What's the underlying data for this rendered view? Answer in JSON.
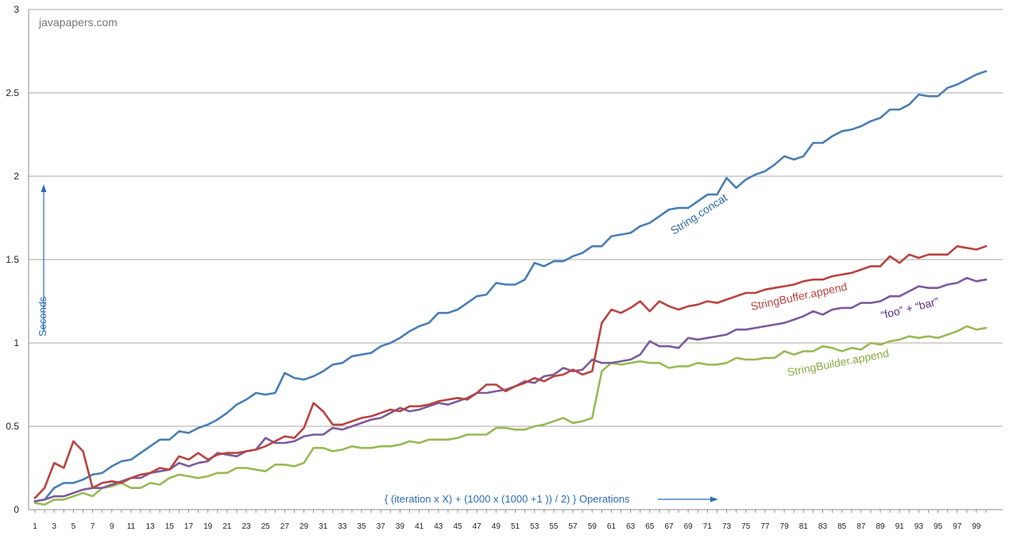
{
  "chart_data": {
    "type": "line",
    "watermark": "javapapers.com",
    "xlabel": "{ (iteration x X) + (1000 x (1000 +1 )) / 2) } Operations",
    "ylabel": "Seconds",
    "xlim": [
      1,
      100
    ],
    "ylim": [
      0,
      3
    ],
    "y_ticks": [
      "0",
      "0.5",
      "1",
      "1.5",
      "2",
      "2.5",
      "3"
    ],
    "y_tick_values": [
      0,
      0.5,
      1,
      1.5,
      2,
      2.5,
      3
    ],
    "x_tick_labels": [
      "1",
      "3",
      "5",
      "7",
      "9",
      "11",
      "13",
      "15",
      "17",
      "19",
      "21",
      "23",
      "25",
      "27",
      "29",
      "31",
      "33",
      "35",
      "37",
      "39",
      "41",
      "43",
      "45",
      "47",
      "49",
      "51",
      "53",
      "55",
      "57",
      "59",
      "61",
      "63",
      "65",
      "67",
      "69",
      "71",
      "73",
      "75",
      "77",
      "79",
      "81",
      "83",
      "85",
      "87",
      "89",
      "91",
      "93",
      "95",
      "97",
      "99"
    ],
    "grid": "horizontal",
    "colors": {
      "string_concat": "#4a7eb4",
      "string_buffer": "#b8443f",
      "foo_bar": "#7b5b9c",
      "string_builder": "#98b955",
      "annotation": "#2a6db5"
    },
    "series": [
      {
        "name": "String.concat",
        "color": "#4a7eb4",
        "values": [
          0.05,
          0.06,
          0.13,
          0.16,
          0.16,
          0.18,
          0.21,
          0.22,
          0.26,
          0.29,
          0.3,
          0.34,
          0.38,
          0.42,
          0.42,
          0.47,
          0.46,
          0.49,
          0.51,
          0.54,
          0.58,
          0.63,
          0.66,
          0.7,
          0.69,
          0.7,
          0.82,
          0.79,
          0.78,
          0.8,
          0.83,
          0.87,
          0.88,
          0.92,
          0.93,
          0.94,
          0.98,
          1.0,
          1.03,
          1.07,
          1.1,
          1.12,
          1.18,
          1.18,
          1.2,
          1.24,
          1.28,
          1.29,
          1.36,
          1.35,
          1.35,
          1.38,
          1.48,
          1.46,
          1.49,
          1.49,
          1.52,
          1.54,
          1.58,
          1.58,
          1.64,
          1.65,
          1.66,
          1.7,
          1.72,
          1.76,
          1.8,
          1.81,
          1.81,
          1.85,
          1.89,
          1.89,
          1.99,
          1.93,
          1.98,
          2.01,
          2.03,
          2.07,
          2.12,
          2.1,
          2.12,
          2.2,
          2.2,
          2.24,
          2.27,
          2.28,
          2.3,
          2.33,
          2.35,
          2.4,
          2.4,
          2.43,
          2.49,
          2.48,
          2.48,
          2.53,
          2.55,
          2.58,
          2.61,
          2.63
        ]
      },
      {
        "name": "StringBuffer.append",
        "color": "#b8443f",
        "values": [
          0.07,
          0.13,
          0.28,
          0.25,
          0.41,
          0.35,
          0.13,
          0.16,
          0.17,
          0.16,
          0.19,
          0.21,
          0.22,
          0.25,
          0.24,
          0.32,
          0.3,
          0.34,
          0.3,
          0.33,
          0.34,
          0.34,
          0.35,
          0.36,
          0.38,
          0.41,
          0.44,
          0.43,
          0.49,
          0.64,
          0.59,
          0.51,
          0.51,
          0.53,
          0.55,
          0.56,
          0.58,
          0.6,
          0.59,
          0.62,
          0.62,
          0.63,
          0.65,
          0.66,
          0.67,
          0.66,
          0.7,
          0.75,
          0.75,
          0.71,
          0.74,
          0.76,
          0.79,
          0.77,
          0.8,
          0.81,
          0.84,
          0.81,
          0.83,
          1.12,
          1.2,
          1.18,
          1.21,
          1.25,
          1.19,
          1.25,
          1.22,
          1.2,
          1.22,
          1.23,
          1.25,
          1.24,
          1.26,
          1.28,
          1.3,
          1.3,
          1.32,
          1.33,
          1.34,
          1.35,
          1.37,
          1.38,
          1.38,
          1.4,
          1.41,
          1.42,
          1.44,
          1.46,
          1.46,
          1.52,
          1.48,
          1.53,
          1.51,
          1.53,
          1.53,
          1.53,
          1.58,
          1.57,
          1.56,
          1.58
        ]
      },
      {
        "name": "“foo” + “bar”",
        "color": "#7b5b9c",
        "values": [
          0.05,
          0.06,
          0.08,
          0.08,
          0.1,
          0.12,
          0.13,
          0.13,
          0.15,
          0.17,
          0.19,
          0.19,
          0.22,
          0.23,
          0.24,
          0.28,
          0.26,
          0.28,
          0.29,
          0.34,
          0.33,
          0.32,
          0.35,
          0.36,
          0.43,
          0.4,
          0.4,
          0.41,
          0.44,
          0.45,
          0.45,
          0.49,
          0.48,
          0.5,
          0.52,
          0.54,
          0.55,
          0.58,
          0.61,
          0.59,
          0.6,
          0.62,
          0.64,
          0.63,
          0.65,
          0.67,
          0.7,
          0.7,
          0.71,
          0.72,
          0.74,
          0.77,
          0.76,
          0.8,
          0.81,
          0.85,
          0.83,
          0.84,
          0.9,
          0.88,
          0.88,
          0.89,
          0.9,
          0.93,
          1.01,
          0.98,
          0.98,
          0.97,
          1.03,
          1.02,
          1.03,
          1.04,
          1.05,
          1.08,
          1.08,
          1.09,
          1.1,
          1.11,
          1.12,
          1.14,
          1.16,
          1.19,
          1.17,
          1.2,
          1.21,
          1.21,
          1.24,
          1.24,
          1.25,
          1.28,
          1.28,
          1.31,
          1.34,
          1.33,
          1.33,
          1.35,
          1.36,
          1.39,
          1.37,
          1.38
        ]
      },
      {
        "name": "StringBuilder.append",
        "color": "#98b955",
        "values": [
          0.04,
          0.03,
          0.06,
          0.06,
          0.08,
          0.1,
          0.08,
          0.13,
          0.14,
          0.16,
          0.13,
          0.13,
          0.16,
          0.15,
          0.19,
          0.21,
          0.2,
          0.19,
          0.2,
          0.22,
          0.22,
          0.25,
          0.25,
          0.24,
          0.23,
          0.27,
          0.27,
          0.26,
          0.28,
          0.37,
          0.37,
          0.35,
          0.36,
          0.38,
          0.37,
          0.37,
          0.38,
          0.38,
          0.39,
          0.41,
          0.4,
          0.42,
          0.42,
          0.42,
          0.43,
          0.45,
          0.45,
          0.45,
          0.49,
          0.49,
          0.48,
          0.48,
          0.5,
          0.51,
          0.53,
          0.55,
          0.52,
          0.53,
          0.55,
          0.83,
          0.88,
          0.87,
          0.88,
          0.89,
          0.88,
          0.88,
          0.85,
          0.86,
          0.86,
          0.88,
          0.87,
          0.87,
          0.88,
          0.91,
          0.9,
          0.9,
          0.91,
          0.91,
          0.95,
          0.93,
          0.95,
          0.95,
          0.98,
          0.97,
          0.95,
          0.97,
          0.96,
          1.0,
          0.99,
          1.01,
          1.02,
          1.04,
          1.03,
          1.04,
          1.03,
          1.05,
          1.07,
          1.1,
          1.08,
          1.09
        ]
      }
    ],
    "annotations": {
      "string_concat": "String.concat",
      "string_buffer": "StringBuffer.append",
      "foo_bar": "“foo” + “bar”",
      "string_builder": "StringBuilder.append"
    }
  }
}
